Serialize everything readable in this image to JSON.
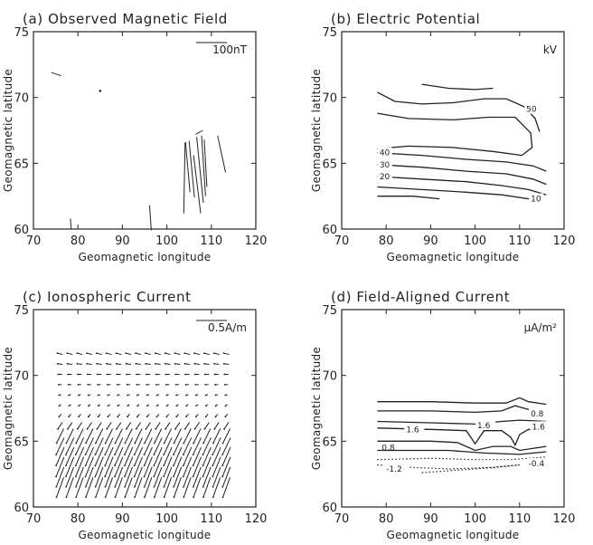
{
  "chart_data": [
    {
      "type": "vector-field",
      "panel_id": "a",
      "title": "(a) Observed Magnetic Field",
      "xlabel": "Geomagnetic longitude",
      "ylabel": "Geomagnetic latitude",
      "xlim": [
        70,
        120
      ],
      "ylim": [
        60,
        75
      ],
      "xticks": [
        70,
        80,
        90,
        100,
        110,
        120
      ],
      "yticks": [
        60,
        65,
        70,
        75
      ],
      "scale_label": "100nT",
      "vectors": [
        {
          "x": 74.0,
          "y": 71.9,
          "dx": 2.2,
          "dy": -0.25
        },
        {
          "x": 85.0,
          "y": 70.5,
          "dx": 0.15,
          "dy": 0.05
        },
        {
          "x": 78.5,
          "y": 60.0,
          "dx": -0.2,
          "dy": 0.8
        },
        {
          "x": 96.5,
          "y": 59.9,
          "dx": -0.4,
          "dy": 1.9
        },
        {
          "x": 103.8,
          "y": 61.2,
          "dx": 0.3,
          "dy": 5.4
        },
        {
          "x": 105.2,
          "y": 62.8,
          "dx": -1.0,
          "dy": 3.8
        },
        {
          "x": 106.2,
          "y": 62.4,
          "dx": -1.2,
          "dy": 4.3
        },
        {
          "x": 107.6,
          "y": 61.2,
          "dx": -1.6,
          "dy": 4.4
        },
        {
          "x": 108.2,
          "y": 62.0,
          "dx": -1.5,
          "dy": 5.0
        },
        {
          "x": 108.7,
          "y": 62.5,
          "dx": -0.9,
          "dy": 4.6
        },
        {
          "x": 109.0,
          "y": 63.2,
          "dx": -0.6,
          "dy": 3.6
        },
        {
          "x": 113.2,
          "y": 64.3,
          "dx": -1.8,
          "dy": 2.8
        },
        {
          "x": 106.5,
          "y": 67.2,
          "dx": 1.6,
          "dy": 0.3
        }
      ]
    },
    {
      "type": "contour",
      "panel_id": "b",
      "title": "(b) Electric Potential",
      "xlabel": "Geomagnetic longitude",
      "ylabel": "Geomagnetic latitude",
      "xlim": [
        70,
        120
      ],
      "ylim": [
        60,
        75
      ],
      "xticks": [
        70,
        80,
        90,
        100,
        110,
        120
      ],
      "yticks": [
        60,
        65,
        70,
        75
      ],
      "unit_label": "kV",
      "levels": [
        {
          "label": "50",
          "lx": 111.5,
          "ly": 69.1,
          "points": [
            [
              78,
              70.4
            ],
            [
              82,
              69.7
            ],
            [
              88,
              69.5
            ],
            [
              95,
              69.6
            ],
            [
              102,
              69.9
            ],
            [
              107,
              69.9
            ],
            [
              111,
              69.3
            ],
            [
              113.5,
              68.4
            ],
            [
              114.5,
              67.4
            ]
          ]
        },
        {
          "label": "",
          "lx": 0,
          "ly": 0,
          "points": [
            [
              78,
              68.8
            ],
            [
              85,
              68.4
            ],
            [
              95,
              68.3
            ],
            [
              103,
              68.5
            ],
            [
              109,
              68.5
            ],
            [
              112.5,
              67.3
            ],
            [
              112.8,
              66.2
            ],
            [
              110.5,
              65.6
            ],
            [
              104,
              65.9
            ],
            [
              95,
              66.2
            ],
            [
              85,
              66.3
            ],
            [
              78,
              66.1
            ]
          ]
        },
        {
          "label": "",
          "lx": 0,
          "ly": 0,
          "points": [
            [
              88,
              71.0
            ],
            [
              94,
              70.7
            ],
            [
              100,
              70.6
            ],
            [
              104,
              70.7
            ]
          ]
        },
        {
          "label": "40",
          "lx": 78.5,
          "ly": 65.8,
          "points": [
            [
              78,
              65.8
            ],
            [
              88,
              65.6
            ],
            [
              98,
              65.3
            ],
            [
              107,
              65.1
            ],
            [
              113,
              64.8
            ],
            [
              116,
              64.4
            ]
          ]
        },
        {
          "label": "30",
          "lx": 78.5,
          "ly": 64.9,
          "points": [
            [
              78,
              64.9
            ],
            [
              88,
              64.7
            ],
            [
              98,
              64.4
            ],
            [
              107,
              64.2
            ],
            [
              113,
              63.8
            ],
            [
              116,
              63.4
            ]
          ]
        },
        {
          "label": "20",
          "lx": 78.5,
          "ly": 64.0,
          "points": [
            [
              78,
              64.0
            ],
            [
              88,
              63.8
            ],
            [
              98,
              63.6
            ],
            [
              106,
              63.3
            ],
            [
              112,
              63.0
            ],
            [
              116,
              62.6
            ]
          ]
        },
        {
          "label": "10",
          "lx": 112.5,
          "ly": 62.3,
          "points": [
            [
              78,
              63.2
            ],
            [
              88,
              63.0
            ],
            [
              98,
              62.8
            ],
            [
              106,
              62.6
            ],
            [
              112,
              62.3
            ],
            [
              114,
              62.1
            ]
          ]
        },
        {
          "label": "",
          "lx": 0,
          "ly": 0,
          "points": [
            [
              78,
              62.5
            ],
            [
              86,
              62.5
            ],
            [
              92,
              62.3
            ]
          ]
        }
      ]
    },
    {
      "type": "vector-field",
      "panel_id": "c",
      "title": "(c) Ionospheric Current",
      "xlabel": "Geomagnetic longitude",
      "ylabel": "Geomagnetic latitude",
      "xlim": [
        70,
        120
      ],
      "ylim": [
        60,
        75
      ],
      "xticks": [
        70,
        80,
        90,
        100,
        110,
        120
      ],
      "yticks": [
        60,
        65,
        70,
        75
      ],
      "scale_label": "0.5A/m",
      "grid": {
        "lon_start": 76,
        "lon_step": 2.2,
        "lon_count": 18,
        "lat_start": 61.5,
        "lat_step": 0.78,
        "lat_count": 14,
        "rows": [
          {
            "dx": 1.6,
            "dy": 1.5
          },
          {
            "dx": 1.7,
            "dy": 1.5
          },
          {
            "dx": 1.8,
            "dy": 1.5
          },
          {
            "dx": 1.8,
            "dy": 1.4
          },
          {
            "dx": 1.8,
            "dy": 1.3
          },
          {
            "dx": 1.6,
            "dy": 1.1
          },
          {
            "dx": 1.0,
            "dy": 0.5
          },
          {
            "dx": 0.5,
            "dy": 0.2
          },
          {
            "dx": 0.4,
            "dy": 0.1
          },
          {
            "dx": 0.5,
            "dy": 0.05
          },
          {
            "dx": 0.7,
            "dy": 0.0
          },
          {
            "dx": 0.9,
            "dy": 0.0
          },
          {
            "dx": 1.1,
            "dy": -0.05
          },
          {
            "dx": 1.2,
            "dy": -0.1
          }
        ]
      }
    },
    {
      "type": "contour",
      "panel_id": "d",
      "title": "(d) Field-Aligned Current",
      "xlabel": "Geomagnetic longitude",
      "ylabel": "Geomagnetic latitude",
      "xlim": [
        70,
        120
      ],
      "ylim": [
        60,
        75
      ],
      "xticks": [
        70,
        80,
        90,
        100,
        110,
        120
      ],
      "yticks": [
        60,
        65,
        70,
        75
      ],
      "unit_label": "μA/m²",
      "levels": [
        {
          "label": "",
          "negative": false,
          "lx": 0,
          "ly": 0,
          "points": [
            [
              78,
              68.0
            ],
            [
              90,
              68.0
            ],
            [
              100,
              67.9
            ],
            [
              107,
              67.9
            ],
            [
              110,
              68.3
            ],
            [
              112,
              68.0
            ],
            [
              116,
              67.8
            ]
          ]
        },
        {
          "label": "0.8",
          "negative": false,
          "lx": 112.5,
          "ly": 67.1,
          "points": [
            [
              78,
              67.3
            ],
            [
              90,
              67.3
            ],
            [
              100,
              67.2
            ],
            [
              106,
              67.3
            ],
            [
              109,
              67.7
            ],
            [
              111,
              67.5
            ],
            [
              116,
              67.1
            ]
          ]
        },
        {
          "label": "",
          "negative": false,
          "lx": 0,
          "ly": 0,
          "points": [
            [
              78,
              66.5
            ],
            [
              90,
              66.4
            ],
            [
              100,
              66.3
            ],
            [
              106,
              66.5
            ],
            [
              110,
              66.6
            ],
            [
              116,
              66.5
            ]
          ]
        },
        {
          "label": "1.6",
          "negative": false,
          "lx": 84.5,
          "ly": 65.9,
          "points": [
            [
              78,
              66.0
            ],
            [
              90,
              65.9
            ],
            [
              98,
              65.8
            ],
            [
              100,
              64.8
            ],
            [
              102,
              65.8
            ],
            [
              106,
              65.8
            ],
            [
              108,
              65.3
            ],
            [
              109,
              64.7
            ],
            [
              110,
              65.5
            ],
            [
              112,
              65.9
            ],
            [
              116,
              65.8
            ]
          ]
        },
        {
          "label": "1.6",
          "negative": false,
          "lx": 100.5,
          "ly": 66.2,
          "points": []
        },
        {
          "label": "1.6",
          "negative": false,
          "lx": 112.8,
          "ly": 66.1,
          "points": []
        },
        {
          "label": "0.8",
          "negative": false,
          "lx": 79,
          "ly": 64.5,
          "points": [
            [
              78,
              65.0
            ],
            [
              90,
              65.0
            ],
            [
              96,
              64.9
            ],
            [
              100,
              64.3
            ],
            [
              104,
              64.6
            ],
            [
              108,
              64.6
            ],
            [
              110,
              64.3
            ],
            [
              116,
              64.6
            ]
          ]
        },
        {
          "label": "",
          "negative": false,
          "lx": 0,
          "ly": 0,
          "points": [
            [
              78,
              64.3
            ],
            [
              94,
              64.3
            ],
            [
              102,
              64.1
            ],
            [
              110,
              64.0
            ],
            [
              116,
              64.2
            ]
          ]
        },
        {
          "label": "",
          "negative": true,
          "lx": 0,
          "ly": 0,
          "points": [
            [
              78,
              63.6
            ],
            [
              90,
              63.7
            ],
            [
              100,
              63.6
            ],
            [
              108,
              63.6
            ],
            [
              116,
              63.8
            ]
          ]
        },
        {
          "label": "-1.2",
          "negative": true,
          "lx": 80,
          "ly": 62.9,
          "points": [
            [
              78,
              63.2
            ],
            [
              86,
              63.0
            ],
            [
              94,
              62.9
            ],
            [
              104,
              63.0
            ],
            [
              110,
              63.2
            ]
          ]
        },
        {
          "label": "-0.4",
          "negative": true,
          "lx": 112,
          "ly": 63.3,
          "points": [
            [
              88,
              62.6
            ],
            [
              96,
              62.8
            ],
            [
              104,
              63.0
            ],
            [
              110,
              63.2
            ]
          ]
        }
      ]
    }
  ]
}
